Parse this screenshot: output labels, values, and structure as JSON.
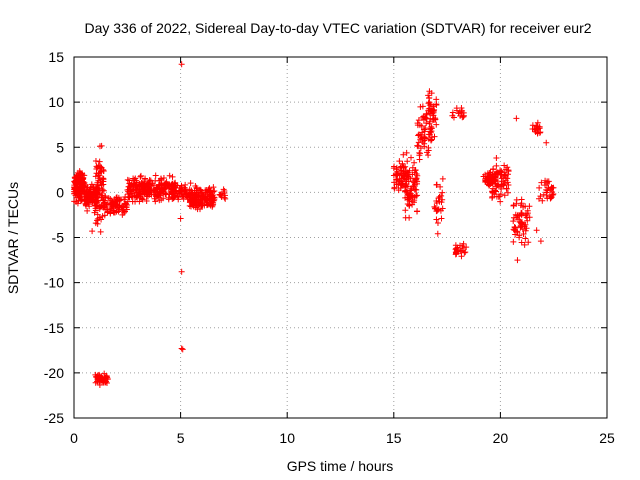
{
  "chart_data": {
    "type": "scatter",
    "title": "Day 336 of 2022, Sidereal Day-to-day VTEC variation (SDTVAR) for receiver eur2",
    "xlabel": "GPS time / hours",
    "ylabel": "SDTVAR / TECUs",
    "xlim": [
      0,
      25
    ],
    "ylim": [
      -25,
      15
    ],
    "xticks": [
      0,
      5,
      10,
      15,
      20,
      25
    ],
    "yticks": [
      -25,
      -20,
      -15,
      -10,
      -5,
      0,
      5,
      10,
      15
    ],
    "xtick_labels": [
      "0",
      "5",
      "10",
      "15",
      "20",
      "25"
    ],
    "ytick_labels": [
      "-25",
      "-20",
      "-15",
      "-10",
      "-5",
      "0",
      "5",
      "10",
      "15"
    ],
    "grid": true,
    "marker": "+",
    "color": "#ff0000",
    "clusters": [
      {
        "x": [
          0.0,
          0.5
        ],
        "y": [
          -1.5,
          3.0
        ],
        "n": 140
      },
      {
        "x": [
          0.5,
          1.1
        ],
        "y": [
          -2.5,
          1.5
        ],
        "n": 110
      },
      {
        "x": [
          1.0,
          1.4
        ],
        "y": [
          -5.5,
          6.0
        ],
        "n": 80
      },
      {
        "x": [
          1.4,
          2.5
        ],
        "y": [
          -3.0,
          0.0
        ],
        "n": 90
      },
      {
        "x": [
          2.5,
          4.8
        ],
        "y": [
          -1.5,
          2.2
        ],
        "n": 260
      },
      {
        "x": [
          4.8,
          5.4
        ],
        "y": [
          -1.2,
          1.2
        ],
        "n": 40
      },
      {
        "x": [
          5.4,
          6.6
        ],
        "y": [
          -2.2,
          1.2
        ],
        "n": 170
      },
      {
        "x": [
          6.8,
          7.1
        ],
        "y": [
          -1.0,
          0.5
        ],
        "n": 12
      },
      {
        "x": [
          1.0,
          1.6
        ],
        "y": [
          -21.5,
          -19.8
        ],
        "n": 50
      },
      {
        "x": [
          15.0,
          15.6
        ],
        "y": [
          -1.5,
          4.5
        ],
        "n": 60
      },
      {
        "x": [
          15.5,
          16.1
        ],
        "y": [
          -4.0,
          5.0
        ],
        "n": 80
      },
      {
        "x": [
          16.1,
          16.8
        ],
        "y": [
          2.0,
          10.5
        ],
        "n": 60
      },
      {
        "x": [
          16.6,
          17.0
        ],
        "y": [
          5.5,
          11.8
        ],
        "n": 40
      },
      {
        "x": [
          16.9,
          17.3
        ],
        "y": [
          -5.0,
          3.0
        ],
        "n": 25
      },
      {
        "x": [
          17.7,
          18.3
        ],
        "y": [
          8.0,
          9.8
        ],
        "n": 14
      },
      {
        "x": [
          17.9,
          18.4
        ],
        "y": [
          -7.8,
          -5.0
        ],
        "n": 25
      },
      {
        "x": [
          19.2,
          19.8
        ],
        "y": [
          0.5,
          2.5
        ],
        "n": 50
      },
      {
        "x": [
          19.6,
          20.4
        ],
        "y": [
          -2.5,
          4.5
        ],
        "n": 70
      },
      {
        "x": [
          20.6,
          21.4
        ],
        "y": [
          -6.5,
          0.0
        ],
        "n": 60
      },
      {
        "x": [
          21.5,
          21.9
        ],
        "y": [
          6.0,
          8.0
        ],
        "n": 20
      },
      {
        "x": [
          21.8,
          22.5
        ],
        "y": [
          -1.5,
          2.0
        ],
        "n": 30
      }
    ],
    "points": [
      {
        "x": 5.05,
        "y": 14.2
      },
      {
        "x": 5.05,
        "y": -8.8
      },
      {
        "x": 5.05,
        "y": -17.3
      },
      {
        "x": 5.1,
        "y": -17.4
      },
      {
        "x": 5.0,
        "y": -2.9
      },
      {
        "x": 0.85,
        "y": -4.3
      },
      {
        "x": 20.8,
        "y": -7.5
      },
      {
        "x": 20.75,
        "y": 8.2
      },
      {
        "x": 22.15,
        "y": 5.5
      },
      {
        "x": 21.7,
        "y": -4.2
      },
      {
        "x": 21.9,
        "y": -5.4
      },
      {
        "x": 17.3,
        "y": 1.5
      },
      {
        "x": 18.1,
        "y": 8.9
      }
    ]
  }
}
